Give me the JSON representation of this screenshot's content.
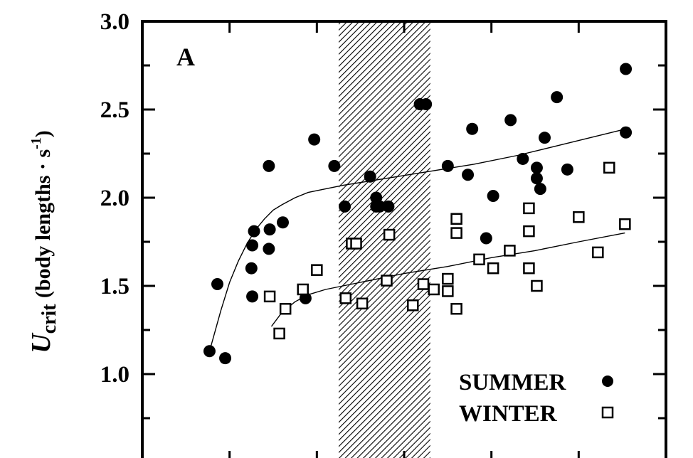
{
  "chart_data": {
    "type": "scatter",
    "panel_label": "A",
    "ylabel": {
      "symbol": "U",
      "subscript": "crit",
      "units_prefix": "(body lengths · s",
      "units_sup": "-1",
      "units_suffix": ")"
    },
    "ylim": [
      0.5,
      3.0
    ],
    "yticks": [
      1.0,
      1.5,
      2.0,
      2.5,
      3.0
    ],
    "ytick_labels": [
      "1.0",
      "1.5",
      "2.0",
      "2.5",
      "3.0"
    ],
    "xlim": [
      0,
      6
    ],
    "shaded_region": [
      2.25,
      3.3
    ],
    "legend": [
      {
        "label": "SUMMER",
        "marker": "filled-circle"
      },
      {
        "label": "WINTER",
        "marker": "open-square"
      }
    ],
    "series": [
      {
        "name": "SUMMER",
        "marker": "filled-circle",
        "points": [
          [
            0.77,
            1.13
          ],
          [
            0.86,
            1.51
          ],
          [
            0.95,
            1.09
          ],
          [
            1.26,
            1.44
          ],
          [
            1.25,
            1.6
          ],
          [
            1.26,
            1.73
          ],
          [
            1.28,
            1.81
          ],
          [
            1.45,
            1.71
          ],
          [
            1.46,
            1.82
          ],
          [
            1.45,
            2.18
          ],
          [
            1.61,
            1.86
          ],
          [
            1.87,
            1.43
          ],
          [
            1.97,
            2.33
          ],
          [
            2.2,
            2.18
          ],
          [
            2.32,
            1.95
          ],
          [
            2.61,
            2.12
          ],
          [
            2.68,
            2.0
          ],
          [
            2.68,
            1.95
          ],
          [
            2.72,
            1.95
          ],
          [
            2.82,
            1.95
          ],
          [
            3.18,
            2.53
          ],
          [
            3.25,
            2.53
          ],
          [
            3.5,
            2.18
          ],
          [
            3.73,
            2.13
          ],
          [
            3.78,
            2.39
          ],
          [
            3.94,
            1.77
          ],
          [
            4.02,
            2.01
          ],
          [
            4.22,
            2.44
          ],
          [
            4.36,
            2.22
          ],
          [
            4.52,
            2.17
          ],
          [
            4.52,
            2.11
          ],
          [
            4.56,
            2.05
          ],
          [
            4.61,
            2.34
          ],
          [
            4.75,
            2.57
          ],
          [
            4.87,
            2.16
          ],
          [
            5.54,
            2.37
          ],
          [
            5.54,
            2.73
          ]
        ],
        "fit": [
          [
            0.77,
            1.13
          ],
          [
            0.9,
            1.36
          ],
          [
            1.0,
            1.52
          ],
          [
            1.1,
            1.64
          ],
          [
            1.2,
            1.74
          ],
          [
            1.3,
            1.82
          ],
          [
            1.4,
            1.88
          ],
          [
            1.5,
            1.93
          ],
          [
            1.6,
            1.96
          ],
          [
            1.75,
            2.0
          ],
          [
            1.9,
            2.03
          ],
          [
            2.0,
            2.04
          ],
          [
            2.3,
            2.07
          ],
          [
            2.8,
            2.11
          ],
          [
            3.3,
            2.15
          ],
          [
            3.8,
            2.19
          ],
          [
            4.3,
            2.24
          ],
          [
            4.8,
            2.3
          ],
          [
            5.54,
            2.39
          ]
        ]
      },
      {
        "name": "WINTER",
        "marker": "open-square",
        "points": [
          [
            1.46,
            1.44
          ],
          [
            1.57,
            1.23
          ],
          [
            1.64,
            1.37
          ],
          [
            1.84,
            1.48
          ],
          [
            2.0,
            1.59
          ],
          [
            2.33,
            1.43
          ],
          [
            2.4,
            1.74
          ],
          [
            2.45,
            1.74
          ],
          [
            2.52,
            1.4
          ],
          [
            2.8,
            1.53
          ],
          [
            2.83,
            1.79
          ],
          [
            3.1,
            1.39
          ],
          [
            3.22,
            1.51
          ],
          [
            3.34,
            1.48
          ],
          [
            3.5,
            1.54
          ],
          [
            3.5,
            1.47
          ],
          [
            3.6,
            1.88
          ],
          [
            3.6,
            1.8
          ],
          [
            3.6,
            1.37
          ],
          [
            3.86,
            1.65
          ],
          [
            4.02,
            1.6
          ],
          [
            4.21,
            1.7
          ],
          [
            4.43,
            1.94
          ],
          [
            4.43,
            1.81
          ],
          [
            4.43,
            1.6
          ],
          [
            4.52,
            1.5
          ],
          [
            5.0,
            1.89
          ],
          [
            5.22,
            1.69
          ],
          [
            5.35,
            2.17
          ],
          [
            5.53,
            1.85
          ]
        ],
        "fit": [
          [
            1.48,
            1.27
          ],
          [
            1.6,
            1.35
          ],
          [
            1.75,
            1.41
          ],
          [
            1.9,
            1.45
          ],
          [
            2.1,
            1.48
          ],
          [
            2.5,
            1.52
          ],
          [
            3.0,
            1.57
          ],
          [
            3.5,
            1.61
          ],
          [
            4.0,
            1.66
          ],
          [
            4.5,
            1.7
          ],
          [
            5.0,
            1.75
          ],
          [
            5.53,
            1.8
          ]
        ]
      }
    ]
  }
}
